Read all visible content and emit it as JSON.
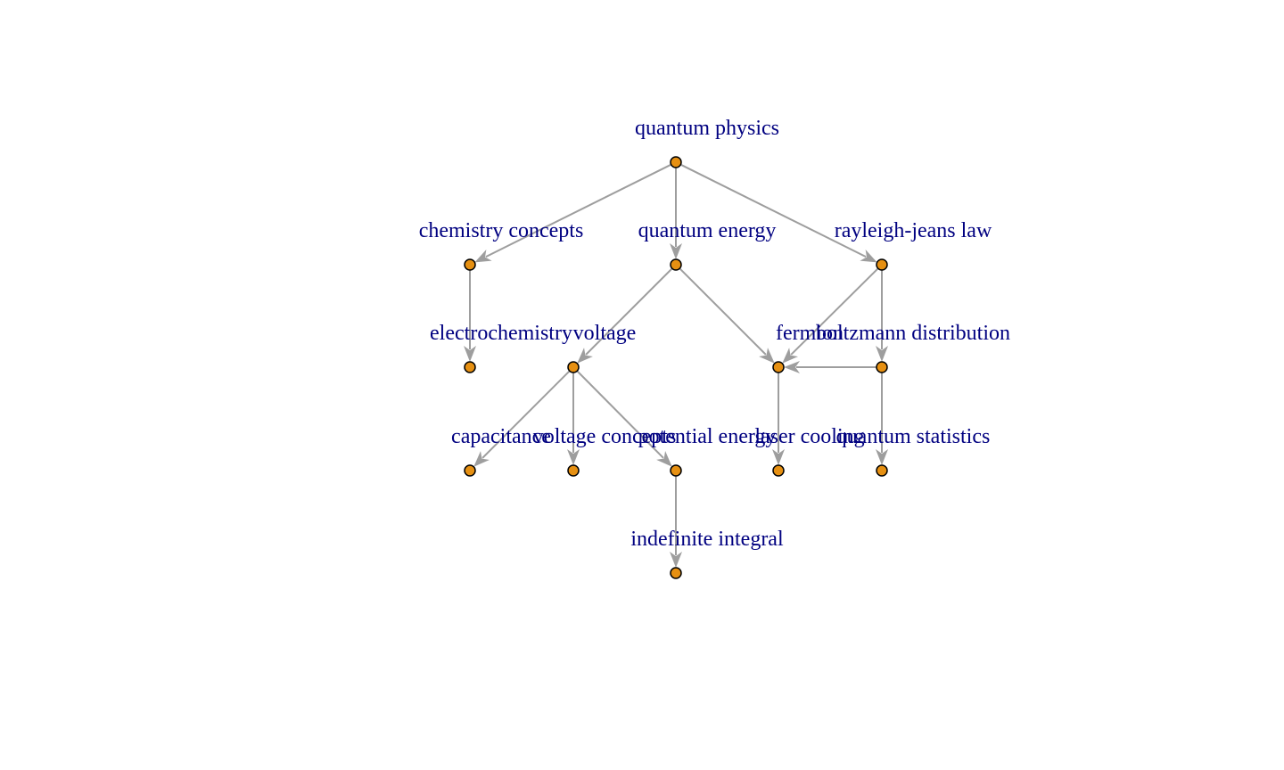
{
  "diagram": {
    "type": "directed-graph",
    "colors": {
      "edge": "#9e9e9e",
      "node_fill": "#e69012",
      "node_stroke": "#000000",
      "label": "#000080"
    },
    "nodes": [
      {
        "id": "quantum_physics",
        "label": "quantum physics"
      },
      {
        "id": "chemistry_concepts",
        "label": "chemistry concepts"
      },
      {
        "id": "quantum_energy",
        "label": "quantum energy"
      },
      {
        "id": "rayleigh_jeans",
        "label": "rayleigh-jeans law"
      },
      {
        "id": "electrochemistry",
        "label": "electrochemistry"
      },
      {
        "id": "voltage",
        "label": "voltage"
      },
      {
        "id": "fermion",
        "label": "fermion"
      },
      {
        "id": "boltzmann",
        "label": "boltzmann distribution"
      },
      {
        "id": "capacitance",
        "label": "capacitance"
      },
      {
        "id": "voltage_concepts",
        "label": "voltage concepts"
      },
      {
        "id": "potential_energy",
        "label": "potential energy"
      },
      {
        "id": "laser_cooling",
        "label": "laser cooling"
      },
      {
        "id": "quantum_statistics",
        "label": "quantum statistics"
      },
      {
        "id": "indefinite_integral",
        "label": "indefinite integral"
      }
    ],
    "edges": [
      {
        "from": "quantum_physics",
        "to": "chemistry_concepts"
      },
      {
        "from": "quantum_physics",
        "to": "quantum_energy"
      },
      {
        "from": "quantum_physics",
        "to": "rayleigh_jeans"
      },
      {
        "from": "chemistry_concepts",
        "to": "electrochemistry"
      },
      {
        "from": "quantum_energy",
        "to": "voltage"
      },
      {
        "from": "quantum_energy",
        "to": "fermion"
      },
      {
        "from": "rayleigh_jeans",
        "to": "fermion"
      },
      {
        "from": "rayleigh_jeans",
        "to": "boltzmann"
      },
      {
        "from": "boltzmann",
        "to": "fermion"
      },
      {
        "from": "voltage",
        "to": "capacitance"
      },
      {
        "from": "voltage",
        "to": "voltage_concepts"
      },
      {
        "from": "voltage",
        "to": "potential_energy"
      },
      {
        "from": "fermion",
        "to": "laser_cooling"
      },
      {
        "from": "boltzmann",
        "to": "quantum_statistics"
      },
      {
        "from": "potential_energy",
        "to": "indefinite_integral"
      }
    ]
  }
}
